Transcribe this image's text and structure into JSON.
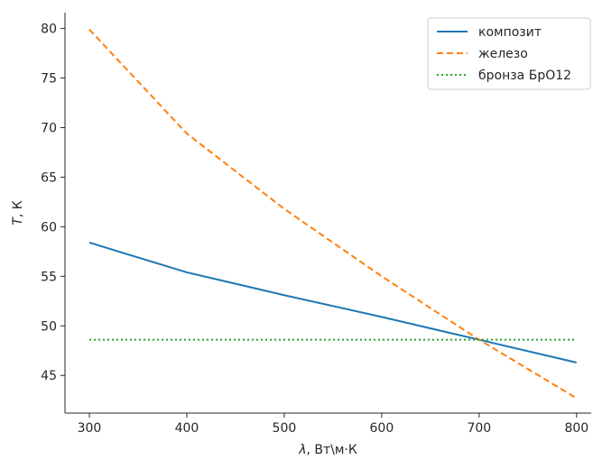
{
  "chart_data": {
    "type": "line",
    "x": [
      300,
      400,
      500,
      600,
      700,
      800
    ],
    "series": [
      {
        "name": "композит",
        "values": [
          58.4,
          55.4,
          53.1,
          50.9,
          48.6,
          46.3
        ],
        "color": "#1f77b4",
        "style": "solid"
      },
      {
        "name": "железо",
        "values": [
          79.9,
          69.4,
          61.8,
          55.0,
          48.6,
          42.7
        ],
        "color": "#ff7f0e",
        "style": "dashed"
      },
      {
        "name": "бронза БрО12",
        "values": [
          48.6,
          48.6,
          48.6,
          48.6,
          48.6,
          48.6
        ],
        "color": "#2ca02c",
        "style": "dotted"
      }
    ],
    "xlabel_symbol": "λ",
    "xlabel_rest": ", Вт\\м·К",
    "ylabel_symbol": "T",
    "ylabel_rest": ", К",
    "xlim": [
      275,
      815
    ],
    "ylim": [
      41.2,
      81.6
    ],
    "xticks": [
      300,
      400,
      500,
      600,
      700,
      800
    ],
    "yticks": [
      45,
      50,
      55,
      60,
      65,
      70,
      75,
      80
    ],
    "legend_position": "top-right",
    "grid": false
  }
}
